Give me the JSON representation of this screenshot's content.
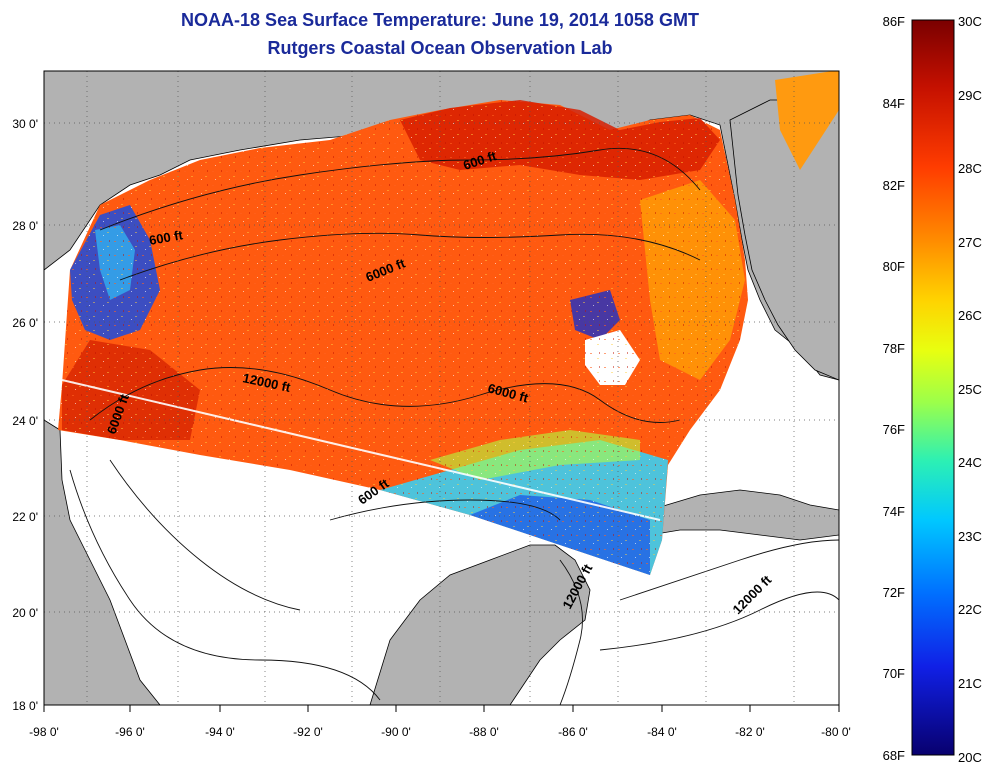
{
  "header": {
    "title": "NOAA-18 Sea Surface Temperature:  June 19, 2014 1058 GMT",
    "subtitle": "Rutgers Coastal Ocean Observation Lab"
  },
  "map": {
    "lon_ticks": [
      "-98 0'",
      "-96 0'",
      "-94 0'",
      "-92 0'",
      "-90 0'",
      "-88 0'",
      "-86 0'",
      "-84 0'",
      "-82 0'",
      "-80 0'"
    ],
    "lat_ticks": [
      "30 0'",
      "28 0'",
      "26 0'",
      "24 0'",
      "22 0'",
      "20 0'",
      "18 0'"
    ],
    "contour_labels": [
      "600 ft",
      "600 ft",
      "6000 ft",
      "12000 ft",
      "6000 ft",
      "6000 ft",
      "600 ft",
      "12000 ft",
      "12000 ft"
    ],
    "colors": {
      "land": "#b2b2b2",
      "no_data": "#ffffff",
      "title": "#1a2a9a"
    }
  },
  "colorbar": {
    "fahrenheit": [
      "86F",
      "84F",
      "82F",
      "80F",
      "78F",
      "76F",
      "74F",
      "72F",
      "70F",
      "68F"
    ],
    "celsius": [
      "30C",
      "29C",
      "28C",
      "27C",
      "26C",
      "25C",
      "24C",
      "23C",
      "22C",
      "21C",
      "20C"
    ],
    "gradient": [
      "#7a0000",
      "#c41000",
      "#ff3c00",
      "#ff8c00",
      "#ffd200",
      "#e8ff10",
      "#9cff4a",
      "#2cf0b4",
      "#00c8ff",
      "#0070ff",
      "#1020e6",
      "#08006e"
    ]
  }
}
